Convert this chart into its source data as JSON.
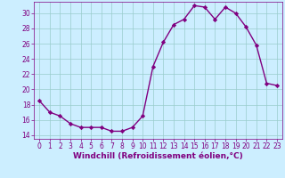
{
  "x": [
    0,
    1,
    2,
    3,
    4,
    5,
    6,
    7,
    8,
    9,
    10,
    11,
    12,
    13,
    14,
    15,
    16,
    17,
    18,
    19,
    20,
    21,
    22,
    23
  ],
  "y": [
    18.5,
    17.0,
    16.5,
    15.5,
    15.0,
    15.0,
    15.0,
    14.5,
    14.5,
    15.0,
    16.5,
    23.0,
    26.2,
    28.5,
    29.2,
    31.0,
    30.8,
    29.2,
    30.8,
    30.0,
    28.2,
    25.8,
    20.8,
    20.5
  ],
  "line_color": "#800080",
  "marker": "D",
  "marker_size": 2.2,
  "bg_color": "#cceeff",
  "xlabel": "Windchill (Refroidissement éolien,°C)",
  "xlabel_fontsize": 6.5,
  "ylim": [
    13.5,
    31.5
  ],
  "xlim": [
    -0.5,
    23.5
  ],
  "yticks": [
    14,
    16,
    18,
    20,
    22,
    24,
    26,
    28,
    30
  ],
  "xticks": [
    0,
    1,
    2,
    3,
    4,
    5,
    6,
    7,
    8,
    9,
    10,
    11,
    12,
    13,
    14,
    15,
    16,
    17,
    18,
    19,
    20,
    21,
    22,
    23
  ],
  "grid_color": "#99cccc",
  "tick_color": "#800080",
  "tick_fontsize": 5.5,
  "line_width": 1.0,
  "spine_color": "#800080"
}
